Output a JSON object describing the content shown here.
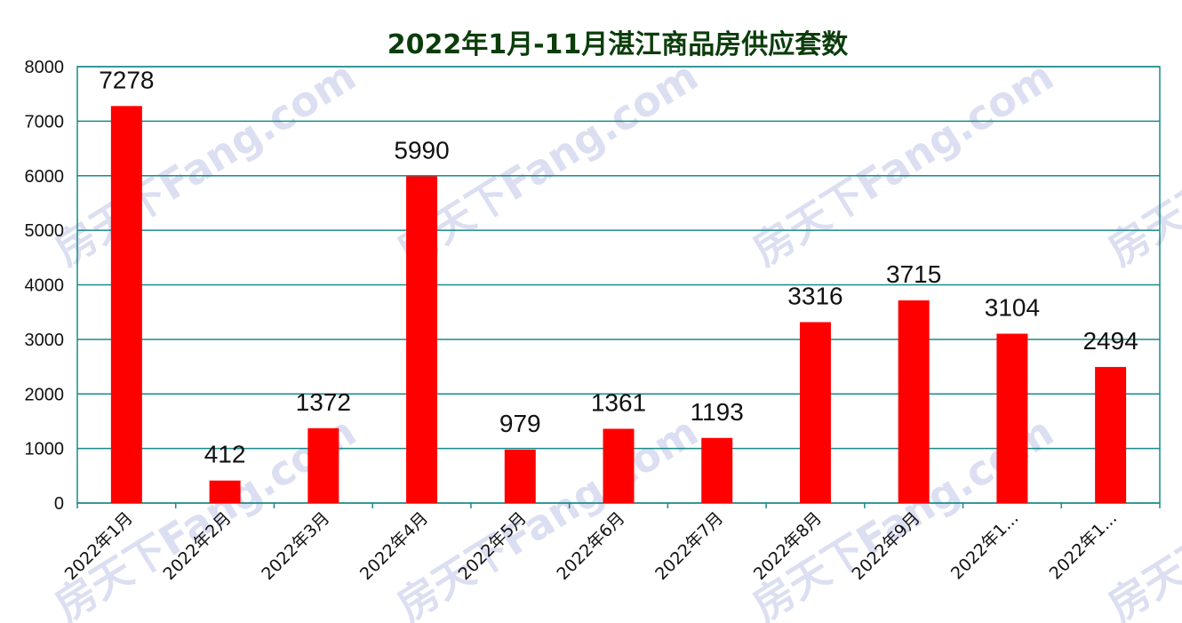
{
  "chart_data": {
    "type": "bar",
    "title": "2022年1月-11月湛江商品房供应套数",
    "categories": [
      "2022年1月",
      "2022年2月",
      "2022年3月",
      "2022年4月",
      "2022年5月",
      "2022年6月",
      "2022年7月",
      "2022年8月",
      "2022年9月",
      "2022年1...",
      "2022年1..."
    ],
    "values": [
      7278,
      412,
      1372,
      5990,
      979,
      1361,
      1193,
      3316,
      3715,
      3104,
      2494
    ],
    "yticks": [
      0,
      1000,
      2000,
      3000,
      4000,
      5000,
      6000,
      7000,
      8000
    ],
    "ylim": [
      0,
      8000
    ],
    "grid": true,
    "legend": "none",
    "bar_color": "#ff0000",
    "grid_color": "#1a8a8a"
  },
  "watermark": "房天下Fang.com"
}
